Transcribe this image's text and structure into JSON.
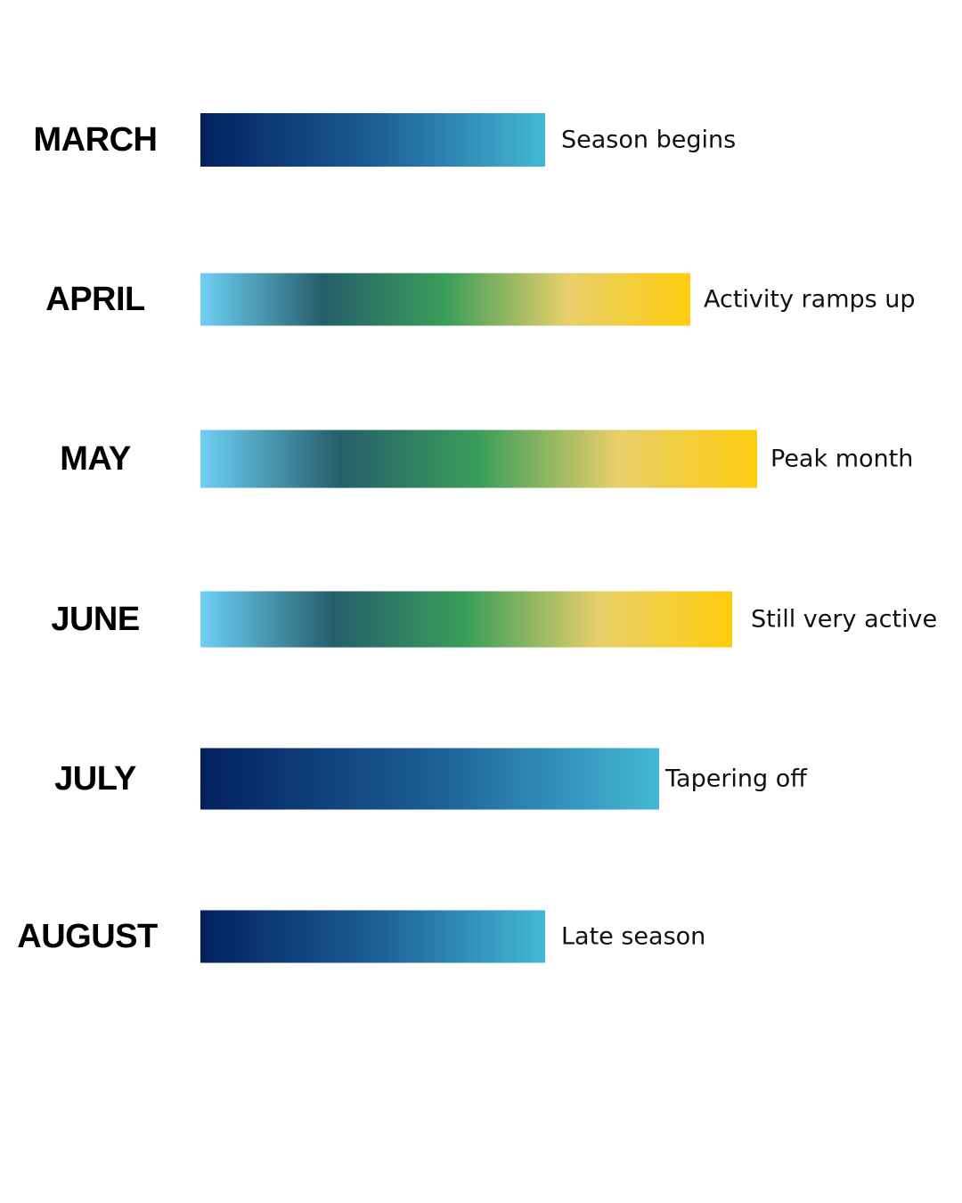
{
  "chart_data": {
    "type": "bar",
    "orientation": "horizontal",
    "categories": [
      "MARCH",
      "APRIL",
      "MAY",
      "JUNE",
      "JULY",
      "AUGUST"
    ],
    "values": [
      387,
      550,
      625,
      597,
      515,
      387
    ],
    "xlim": [
      0,
      625
    ],
    "annotations": [
      "Season begins",
      "Activity ramps up",
      "Peak month",
      "Still very active",
      "Tapering off",
      "Late season"
    ],
    "grid": false,
    "legend": "none",
    "bar_styles": [
      "blue",
      "warm",
      "warm",
      "warm",
      "blue",
      "blue"
    ]
  },
  "colors": {
    "blue_gradient": [
      "#02205f",
      "#1b5d93",
      "#44b8d6"
    ],
    "warm_gradient": [
      "#6dd0f5",
      "#255e6b",
      "#3a9e5a",
      "#e8cf6a",
      "#fdcc0d"
    ]
  }
}
